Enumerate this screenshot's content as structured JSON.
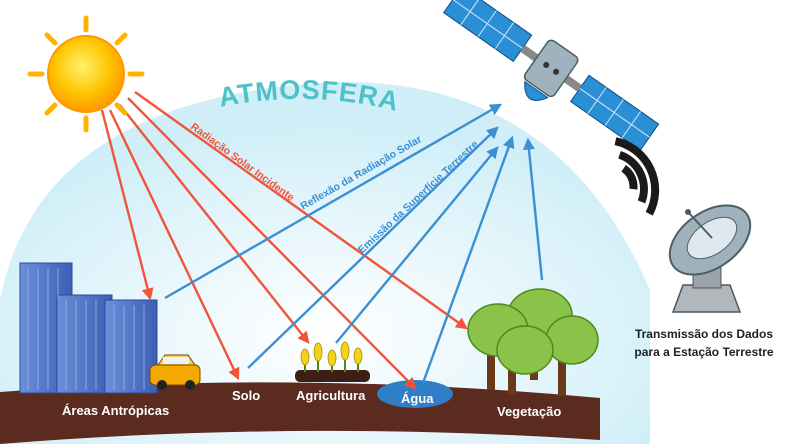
{
  "diagram": {
    "atmosphere_label": "ATMOSFERA",
    "flows": {
      "incident": "Radiação Solar Incidente",
      "reflection": "Reflexão da Radiação Solar",
      "emission": "Emissão da Superfície Terrestre"
    },
    "ground_labels": {
      "urban": "Áreas Antrópicas",
      "soil": "Solo",
      "agriculture": "Agricultura",
      "water": "Água",
      "vegetation": "Vegetação"
    },
    "station_caption": {
      "line1": "Transmissão dos Dados",
      "line2": "para a Estação Terrestre"
    }
  },
  "colors": {
    "sky": "#d9f2fa",
    "atmosphere_text": "#4fc1c8",
    "incident_arrow": "#f0553a",
    "reflected_arrow": "#3b8fd3",
    "ground": "#5a2b1e",
    "sun": "#ffb300",
    "signal": "#1a1a1a"
  }
}
